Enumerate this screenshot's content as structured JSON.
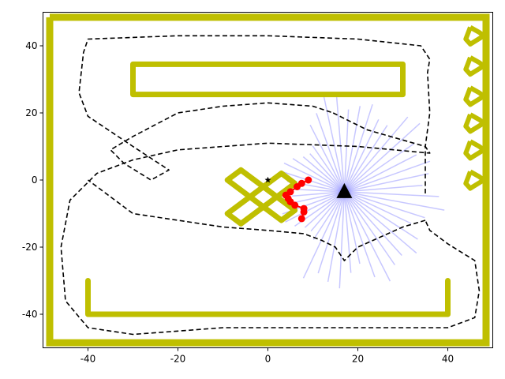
{
  "chart_data": {
    "type": "line",
    "xlim": [
      -50,
      50
    ],
    "ylim": [
      -50,
      50
    ],
    "x_ticks": [
      -40,
      -20,
      0,
      20,
      40
    ],
    "y_ticks": [
      -40,
      -20,
      0,
      20,
      40
    ],
    "grid": false,
    "colors": {
      "wall": "#bfbf00",
      "path": "#000000",
      "rays": "#0000ff",
      "points": "#ff0000",
      "robot": "#000000"
    },
    "series": [
      {
        "type": "polygon",
        "x": [
          -48.5,
          48.5,
          48.5,
          -48.5
        ],
        "y": [
          48.5,
          48.5,
          -48.5,
          -48.5
        ]
      },
      {
        "type": "polygon",
        "x": [
          -30,
          30,
          30,
          -30
        ],
        "y": [
          34.5,
          34.5,
          25.5,
          25.5
        ]
      },
      {
        "type": "polyline",
        "x": [
          -40,
          -40,
          40,
          40
        ],
        "y": [
          -30,
          -40,
          -40,
          -30
        ]
      },
      {
        "type": "polyline",
        "x": [
          -6,
          6,
          3,
          -9,
          -6
        ],
        "y": [
          3,
          -9,
          -12,
          0,
          3
        ]
      },
      {
        "type": "polyline",
        "x": [
          -9,
          3,
          6,
          -6,
          -9
        ],
        "y": [
          -10,
          2,
          -1,
          -13,
          -10
        ]
      },
      {
        "type": "polygon",
        "x": [
          45,
          47,
          48,
          45,
          44
        ],
        "y": [
          45.5,
          44,
          43,
          40.5,
          42
        ]
      },
      {
        "type": "polygon",
        "x": [
          45,
          47,
          48,
          45,
          44
        ],
        "y": [
          36.5,
          35,
          34,
          31.5,
          33
        ]
      },
      {
        "type": "polygon",
        "x": [
          45,
          47,
          48,
          45,
          44
        ],
        "y": [
          27.5,
          26,
          25,
          22.5,
          24
        ]
      },
      {
        "type": "polygon",
        "x": [
          45,
          47,
          48,
          45,
          44
        ],
        "y": [
          19.5,
          18,
          17,
          14.5,
          16
        ]
      },
      {
        "type": "polygon",
        "x": [
          45,
          47,
          48,
          45,
          44
        ],
        "y": [
          11.5,
          10,
          9,
          6.5,
          8
        ]
      },
      {
        "type": "polygon",
        "x": [
          45,
          47,
          48,
          45,
          44
        ],
        "y": [
          2.5,
          1,
          0,
          -2.5,
          -1
        ]
      },
      {
        "type": "path",
        "x": [
          35,
          35,
          36,
          35.5,
          36,
          35,
          34,
          20,
          0,
          -20,
          -40,
          -41,
          -42,
          -40,
          -30,
          -22,
          -26,
          -32,
          -35,
          -30,
          -20,
          -10,
          0,
          10,
          14.5
        ],
        "y": [
          -4,
          10,
          20,
          32,
          36,
          38,
          40,
          42,
          43,
          43,
          42,
          38,
          26,
          19,
          10,
          3,
          0,
          5,
          9,
          13,
          20,
          22,
          23,
          22,
          20
        ]
      },
      {
        "type": "path",
        "x": [
          14.5,
          22,
          35,
          36,
          20,
          0,
          -20,
          -30,
          -38,
          -44,
          -46,
          -45,
          -40,
          -30,
          -20,
          -10,
          0,
          10,
          20,
          30,
          40,
          46,
          47,
          46,
          40,
          36,
          35
        ],
        "y": [
          20,
          15,
          10,
          8,
          10,
          11,
          9,
          6,
          2,
          -6,
          -20,
          -36,
          -44,
          -46,
          -45,
          -44,
          -44,
          -44,
          -44,
          -44,
          -44,
          -41,
          -33,
          -24,
          -19,
          -15,
          -12
        ]
      },
      {
        "type": "path",
        "x": [
          35,
          30,
          20,
          17,
          15,
          12,
          8,
          0,
          -10,
          -30,
          -40
        ],
        "y": [
          -12,
          -14,
          -20,
          -24,
          -20,
          -18,
          -16,
          -15,
          -14,
          -10,
          0
        ]
      },
      {
        "type": "scatter",
        "x": [
          9,
          7.5,
          6.5,
          5,
          4,
          4.5,
          5,
          6,
          8,
          8,
          7.5
        ],
        "y": [
          0,
          -1,
          -2,
          -3.5,
          -4.5,
          -5.5,
          -6.5,
          -7.5,
          -8.5,
          -9.5,
          -11.5
        ]
      },
      {
        "type": "scatter",
        "x": [
          0
        ],
        "y": [
          0
        ]
      },
      {
        "type": "scatter",
        "x": [
          17
        ],
        "y": [
          -3.5
        ]
      }
    ]
  }
}
